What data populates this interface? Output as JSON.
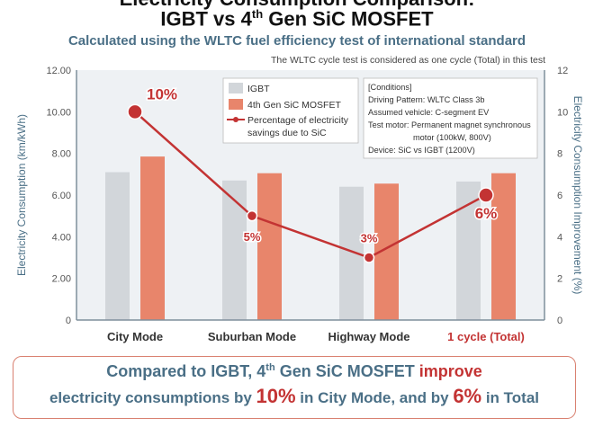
{
  "header": {
    "title_line1": "Electricity Consumption Comparison:",
    "title_line2_a": "IGBT vs 4",
    "title_line2_sup": "th",
    "title_line2_b": " Gen SiC MOSFET",
    "subtitle": "Calculated using the WLTC fuel efficiency test of international standard",
    "note": "The WLTC cycle test is considered as one cycle (Total) in this test"
  },
  "colors": {
    "igbt": "#d2d6da",
    "sic": "#e8856b",
    "line": "#c33333",
    "plot_bg": "#eef1f4",
    "frame": "#7f8f9c"
  },
  "chart_data": {
    "type": "bar",
    "categories": [
      "City Mode",
      "Suburban Mode",
      "Highway Mode",
      "1 cycle (Total)"
    ],
    "series": [
      {
        "name": "IGBT",
        "axis": "left",
        "values": [
          7.1,
          6.7,
          6.4,
          6.65
        ]
      },
      {
        "name": "4th Gen SiC MOSFET",
        "axis": "left",
        "values": [
          7.85,
          7.05,
          6.55,
          7.05
        ]
      },
      {
        "name": "Percentage of electricity savings due to SiC",
        "axis": "right",
        "kind": "line",
        "values": [
          10,
          5,
          3,
          6
        ]
      }
    ],
    "point_labels": [
      "10%",
      "5%",
      "3%",
      "6%"
    ],
    "ylabel": "Electricity Consumption (km/kWh)",
    "y2label": "Electricity Consumption Improvement (%)",
    "ylim": [
      0,
      12
    ],
    "y2lim": [
      0,
      12
    ],
    "yticks": [
      "0",
      "2.00",
      "4.00",
      "6.00",
      "8.00",
      "10.00",
      "12.00"
    ],
    "y2ticks": [
      "0",
      "2",
      "4",
      "6",
      "8",
      "10",
      "12"
    ],
    "legend": {
      "placement": "top-center",
      "entries": [
        "IGBT",
        "4th Gen SiC MOSFET",
        "Percentage of electricity",
        "savings due to SiC"
      ]
    },
    "conditions": [
      "[Conditions]",
      "Driving Pattern: WLTC Class 3b",
      "Assumed vehicle: C-segment EV",
      "Test motor: Permanent magnet synchronous",
      "motor (100kW, 800V)",
      "Device: SiC vs IGBT (1200V)"
    ]
  },
  "summary": {
    "line1_a": "Compared to IGBT, 4",
    "line1_sup": "th",
    "line1_b": " Gen SiC MOSFET ",
    "line1_improve": "improve",
    "line2_a": "electricity consumptions by ",
    "line2_p1": "10%",
    "line2_b": " in City Mode, and by ",
    "line2_p2": "6%",
    "line2_c": " in Total"
  }
}
